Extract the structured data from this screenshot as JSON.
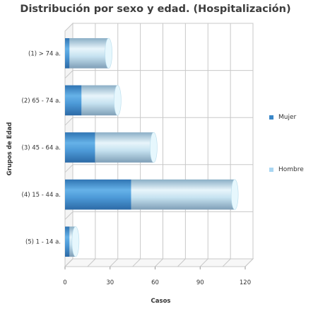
{
  "chart_data": {
    "type": "bar",
    "orientation": "horizontal",
    "stacked": true,
    "style": "3d-cylinder",
    "title": "Distribución por sexo y edad. (Hospitalización)",
    "xlabel": "Casos",
    "ylabel": "Grupos de Edad",
    "xlim": [
      0,
      120
    ],
    "xticks": [
      "0",
      "30",
      "60",
      "90",
      "120"
    ],
    "grid": true,
    "legend_position": "right",
    "categories": [
      "(1) > 74 a.",
      "(2) 65 - 74 a.",
      "(3) 45 - 64 a.",
      "(4) 15 - 44 a.",
      "(5) 1 - 14 a."
    ],
    "series": [
      {
        "name": "Mujer",
        "values": [
          3,
          11,
          20,
          44,
          3
        ],
        "color": "#3a87c8"
      },
      {
        "name": "Hombre",
        "values": [
          26,
          24,
          39,
          69,
          4
        ],
        "color": "#a9d6f2"
      }
    ]
  }
}
